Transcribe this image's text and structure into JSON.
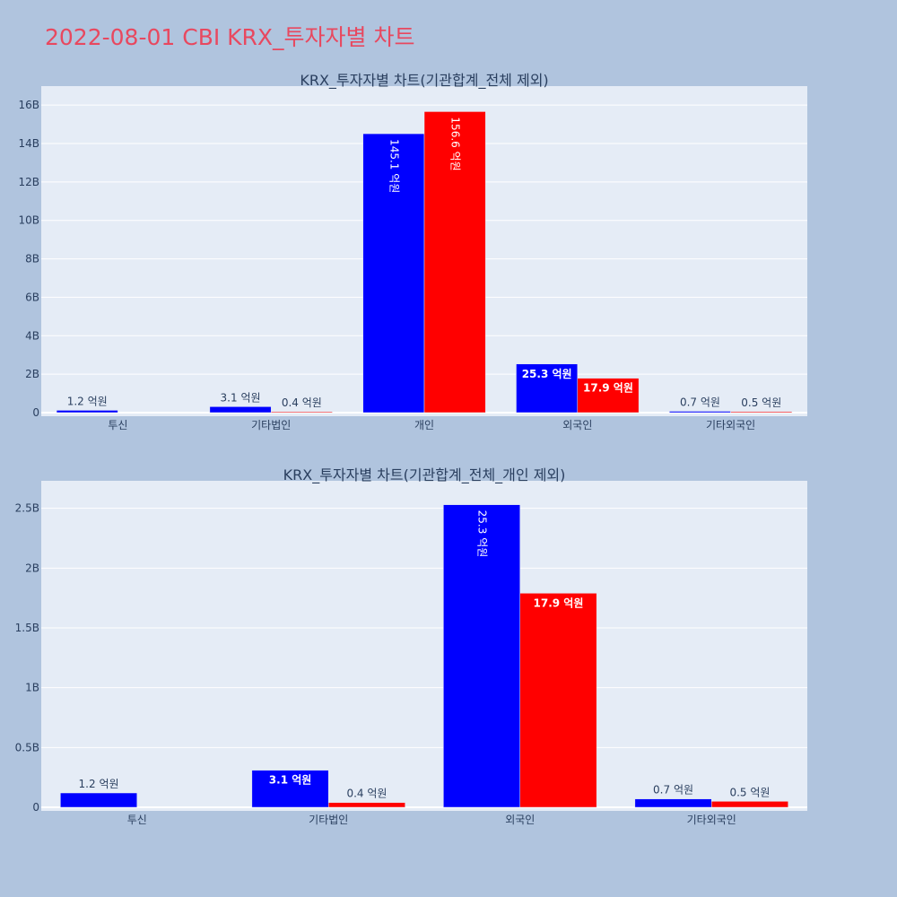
{
  "page_title": "2022-08-01 CBI KRX_투자자별 차트",
  "colors": {
    "background": "#b0c4de",
    "plot_bg": "#e5ecf6",
    "title": "#e8485f",
    "buy": "#0000ff",
    "sell": "#ff0000"
  },
  "chart_data": [
    {
      "type": "bar",
      "title": "KRX_투자자별 차트(기관합계_전체 제외)",
      "categories": [
        "투신",
        "기타법인",
        "개인",
        "외국인",
        "기타외국인"
      ],
      "series": [
        {
          "color": "#0000ff",
          "values": [
            120000000,
            310000000,
            14510000000,
            2530000000,
            70000000
          ],
          "labels": [
            "1.2 억원",
            "3.1 억원",
            "145.1 억원",
            "25.3 억원",
            "0.7 억원"
          ]
        },
        {
          "color": "#ff0000",
          "values": [
            null,
            40000000,
            15660000000,
            1790000000,
            50000000
          ],
          "labels": [
            "",
            "0.4 억원",
            "156.6 억원",
            "17.9 억원",
            "0.5 억원"
          ]
        }
      ],
      "yticks": [
        0,
        2000000000,
        4000000000,
        6000000000,
        8000000000,
        10000000000,
        12000000000,
        14000000000,
        16000000000
      ],
      "ytick_labels": [
        "0",
        "2B",
        "4B",
        "6B",
        "8B",
        "10B",
        "12B",
        "14B",
        "16B"
      ],
      "ylim": [
        0,
        16800000000
      ],
      "grid": true
    },
    {
      "type": "bar",
      "title": "KRX_투자자별 차트(기관합계_전체_개인 제외)",
      "categories": [
        "투신",
        "기타법인",
        "외국인",
        "기타외국인"
      ],
      "series": [
        {
          "color": "#0000ff",
          "values": [
            120000000,
            310000000,
            2530000000,
            70000000
          ],
          "labels": [
            "1.2 억원",
            "3.1 억원",
            "25.3 억원",
            "0.7 억원"
          ]
        },
        {
          "color": "#ff0000",
          "values": [
            null,
            40000000,
            1790000000,
            50000000
          ],
          "labels": [
            "",
            "0.4 억원",
            "17.9 억원",
            "0.5 억원"
          ]
        }
      ],
      "yticks": [
        0,
        500000000,
        1000000000,
        1500000000,
        2000000000,
        2500000000
      ],
      "ytick_labels": [
        "0",
        "0.5B",
        "1B",
        "1.5B",
        "2B",
        "2.5B"
      ],
      "ylim": [
        0,
        2700000000
      ],
      "grid": true
    }
  ]
}
